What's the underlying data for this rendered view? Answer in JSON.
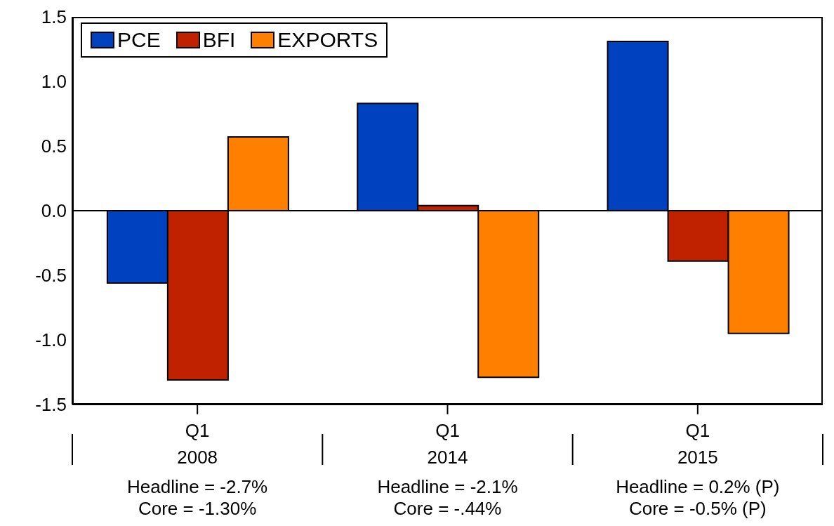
{
  "chart_data": {
    "type": "bar",
    "categories": [
      "Q1\n2008",
      "Q1\n2014",
      "Q1\n2015"
    ],
    "series": [
      {
        "name": "PCE",
        "color": "#0041c0",
        "values": [
          -0.56,
          0.83,
          1.31
        ]
      },
      {
        "name": "BFI",
        "color": "#c02200",
        "values": [
          -1.31,
          0.04,
          -0.39
        ]
      },
      {
        "name": "EXPORTS",
        "color": "#ff8000",
        "values": [
          0.57,
          -1.29,
          -0.95
        ]
      }
    ],
    "ylim": [
      -1.5,
      1.5
    ],
    "yticks": [
      {
        "value": -1.5,
        "label": "-1.5"
      },
      {
        "value": -1,
        "label": "-1.0"
      },
      {
        "value": -0.5,
        "label": "-0.5"
      },
      {
        "value": 0,
        "label": "0.0"
      },
      {
        "value": 0.5,
        "label": "0.5"
      },
      {
        "value": 1,
        "label": "1.0"
      },
      {
        "value": 1.5,
        "label": "1.5"
      }
    ],
    "ref_lines": [
      {
        "axis": "y",
        "value": 0,
        "color": "#000000"
      }
    ],
    "grid": false,
    "legend": "top left",
    "annotations": [
      "Headline = -2.7%",
      "Core = -1.30%",
      "Headline = -2.1%",
      "Core = -.44%",
      "Headline = 0.2% (P)",
      "Core = -0.5%  (P)"
    ]
  }
}
